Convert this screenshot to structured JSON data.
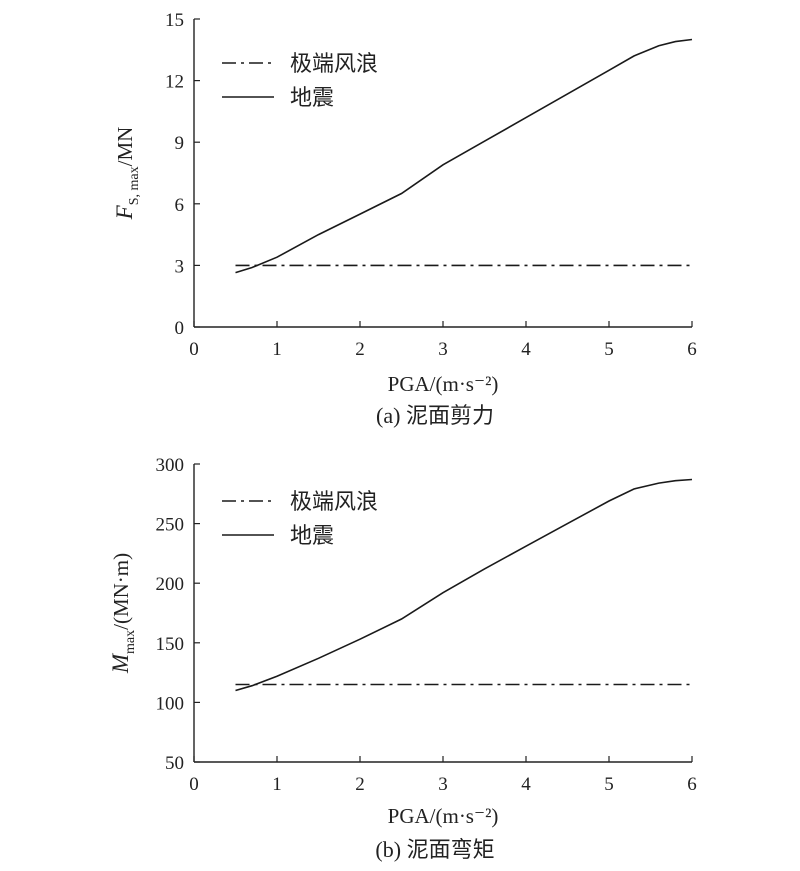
{
  "chart_data": [
    {
      "type": "line",
      "caption": "(a) 泥面剪力",
      "xlabel": "PGA/(m·s⁻²)",
      "ylabel": {
        "main": "F",
        "sub": "S, max",
        "unit": "/MN"
      },
      "xlim": [
        0,
        6
      ],
      "ylim": [
        0,
        15
      ],
      "xticks": [
        0,
        1,
        2,
        3,
        4,
        5,
        6
      ],
      "yticks": [
        0,
        3,
        6,
        9,
        12,
        15
      ],
      "grid": false,
      "legend_position": "top-left",
      "series": [
        {
          "name": "极端风浪",
          "style": "dash-dot",
          "x": [
            0.5,
            6.0
          ],
          "y": [
            3.0,
            3.0
          ]
        },
        {
          "name": "地震",
          "style": "solid",
          "x": [
            0.5,
            0.7,
            1.0,
            1.5,
            2.0,
            2.5,
            3.0,
            3.5,
            4.0,
            4.5,
            5.0,
            5.3,
            5.6,
            5.8,
            6.0
          ],
          "y": [
            2.65,
            2.9,
            3.4,
            4.5,
            5.5,
            6.5,
            7.9,
            9.05,
            10.2,
            11.35,
            12.5,
            13.2,
            13.7,
            13.9,
            14.0
          ]
        }
      ]
    },
    {
      "type": "line",
      "caption": "(b) 泥面弯矩",
      "xlabel": "PGA/(m·s⁻²)",
      "ylabel": {
        "main": "M",
        "sub": "max",
        "unit": "/(MN·m)"
      },
      "xlim": [
        0,
        6
      ],
      "ylim": [
        50,
        300
      ],
      "xticks": [
        0,
        1,
        2,
        3,
        4,
        5,
        6
      ],
      "yticks": [
        50,
        100,
        150,
        200,
        250,
        300
      ],
      "grid": false,
      "legend_position": "top-left",
      "series": [
        {
          "name": "极端风浪",
          "style": "dash-dot",
          "x": [
            0.5,
            6.0
          ],
          "y": [
            115,
            115
          ]
        },
        {
          "name": "地震",
          "style": "solid",
          "x": [
            0.5,
            0.7,
            1.0,
            1.5,
            2.0,
            2.5,
            3.0,
            3.5,
            4.0,
            4.5,
            5.0,
            5.3,
            5.6,
            5.8,
            6.0
          ],
          "y": [
            110,
            114,
            122,
            137,
            153,
            170,
            192,
            212,
            231,
            250,
            269,
            279,
            284,
            286,
            287
          ]
        }
      ]
    }
  ]
}
